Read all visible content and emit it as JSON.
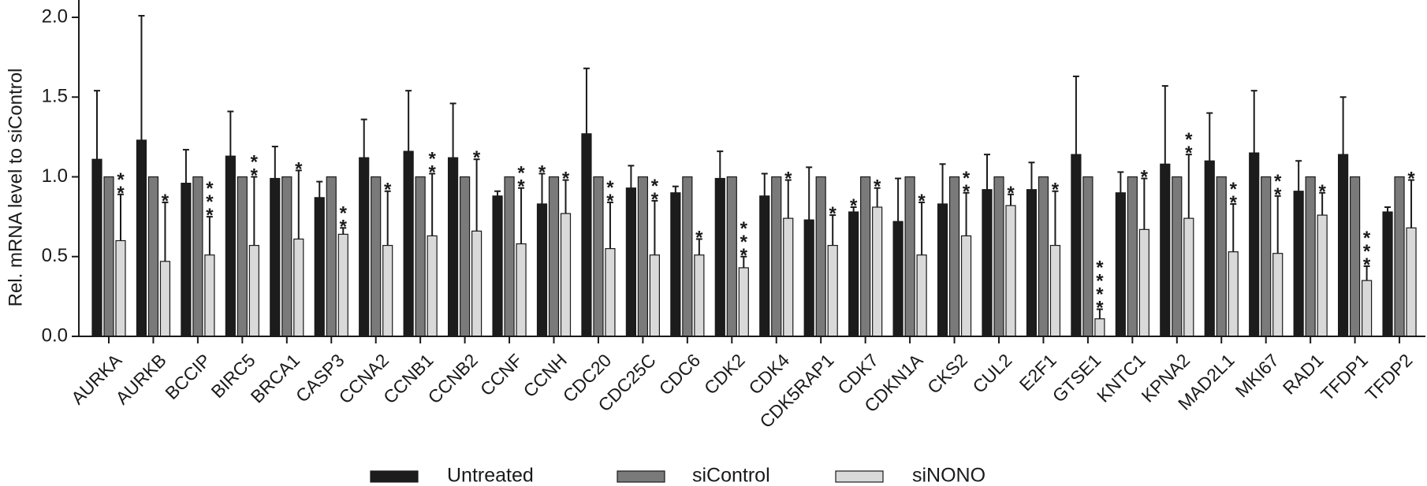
{
  "chart_data": {
    "type": "bar",
    "title": "",
    "xlabel": "",
    "ylabel": "Rel. mRNA level to siControl",
    "ylim": [
      0,
      2.0
    ],
    "yticks": [
      "0.0",
      "0.5",
      "1.0",
      "1.5",
      "2.0"
    ],
    "grid": false,
    "legend_position": "bottom",
    "categories": [
      "AURKA",
      "AURKB",
      "BCCIP",
      "BIRC5",
      "BRCA1",
      "CASP3",
      "CCNA2",
      "CCNB1",
      "CCNB2",
      "CCNF",
      "CCNH",
      "CDC20",
      "CDC25C",
      "CDC6",
      "CDK2",
      "CDK4",
      "CDK5RAP1",
      "CDK7",
      "CDKN1A",
      "CKS2",
      "CUL2",
      "E2F1",
      "GTSE1",
      "KNTC1",
      "KPNA2",
      "MAD2L1",
      "MKI67",
      "RAD1",
      "TFDP1",
      "TFDP2"
    ],
    "series": [
      {
        "name": "Untreated",
        "color": "#1c1c1c",
        "values": [
          1.11,
          1.23,
          0.96,
          1.13,
          0.99,
          0.87,
          1.12,
          1.16,
          1.12,
          0.88,
          0.83,
          1.27,
          0.93,
          0.9,
          0.99,
          0.88,
          0.73,
          0.78,
          0.72,
          0.83,
          0.92,
          0.92,
          1.14,
          0.9,
          1.08,
          1.1,
          1.15,
          0.91,
          1.14,
          0.78
        ],
        "errors": [
          0.43,
          0.78,
          0.21,
          0.28,
          0.2,
          0.1,
          0.24,
          0.38,
          0.34,
          0.03,
          0.19,
          0.41,
          0.14,
          0.04,
          0.17,
          0.14,
          0.33,
          0.03,
          0.27,
          0.25,
          0.22,
          0.17,
          0.49,
          0.13,
          0.49,
          0.3,
          0.39,
          0.19,
          0.36,
          0.03
        ]
      },
      {
        "name": "siControl",
        "color": "#7a7a7a",
        "values": [
          1,
          1,
          1,
          1,
          1,
          1,
          1,
          1,
          1,
          1,
          1,
          1,
          1,
          1,
          1,
          1,
          1,
          1,
          1,
          1,
          1,
          1,
          1,
          1,
          1,
          1,
          1,
          1,
          1,
          1
        ],
        "errors": [
          0,
          0,
          0,
          0,
          0,
          0,
          0,
          0,
          0,
          0,
          0,
          0,
          0,
          0,
          0,
          0,
          0,
          0,
          0,
          0,
          0,
          0,
          0,
          0,
          0,
          0,
          0,
          0,
          0,
          0
        ]
      },
      {
        "name": "siNONO",
        "color": "#d9d9d9",
        "values": [
          0.6,
          0.47,
          0.51,
          0.57,
          0.61,
          0.64,
          0.57,
          0.63,
          0.66,
          0.58,
          0.77,
          0.55,
          0.51,
          0.51,
          0.43,
          0.74,
          0.57,
          0.81,
          0.51,
          0.63,
          0.82,
          0.57,
          0.11,
          0.67,
          0.74,
          0.53,
          0.52,
          0.76,
          0.35,
          0.68
        ],
        "errors": [
          0.29,
          0.37,
          0.24,
          0.43,
          0.43,
          0.04,
          0.34,
          0.39,
          0.45,
          0.35,
          0.21,
          0.29,
          0.34,
          0.1,
          0.07,
          0.24,
          0.19,
          0.12,
          0.33,
          0.27,
          0.07,
          0.34,
          0.06,
          0.32,
          0.4,
          0.3,
          0.36,
          0.14,
          0.09,
          0.3
        ]
      }
    ],
    "significance": [
      {
        "category": "AURKA",
        "series": "siNONO",
        "label": "**"
      },
      {
        "category": "AURKB",
        "series": "siNONO",
        "label": "*"
      },
      {
        "category": "BCCIP",
        "series": "siNONO",
        "label": "***"
      },
      {
        "category": "BIRC5",
        "series": "siNONO",
        "label": "**"
      },
      {
        "category": "BRCA1",
        "series": "siNONO",
        "label": "*"
      },
      {
        "category": "CASP3",
        "series": "siNONO",
        "label": "**"
      },
      {
        "category": "CCNA2",
        "series": "siNONO",
        "label": "*"
      },
      {
        "category": "CCNB1",
        "series": "siNONO",
        "label": "**"
      },
      {
        "category": "CCNB2",
        "series": "siNONO",
        "label": "*"
      },
      {
        "category": "CCNF",
        "series": "siNONO",
        "label": "**"
      },
      {
        "category": "CCNH",
        "series": "Untreated",
        "label": "*"
      },
      {
        "category": "CCNH",
        "series": "siNONO",
        "label": "*"
      },
      {
        "category": "CDC20",
        "series": "siNONO",
        "label": "**"
      },
      {
        "category": "CDC25C",
        "series": "siNONO",
        "label": "**"
      },
      {
        "category": "CDC6",
        "series": "siNONO",
        "label": "*"
      },
      {
        "category": "CDK2",
        "series": "siNONO",
        "label": "***"
      },
      {
        "category": "CDK4",
        "series": "siNONO",
        "label": "*"
      },
      {
        "category": "CDK5RAP1",
        "series": "siNONO",
        "label": "*"
      },
      {
        "category": "CDK7",
        "series": "Untreated",
        "label": "*"
      },
      {
        "category": "CDK7",
        "series": "siNONO",
        "label": "*"
      },
      {
        "category": "CDKN1A",
        "series": "siNONO",
        "label": "*"
      },
      {
        "category": "CKS2",
        "series": "siNONO",
        "label": "**"
      },
      {
        "category": "CUL2",
        "series": "siNONO",
        "label": "*"
      },
      {
        "category": "E2F1",
        "series": "siNONO",
        "label": "*"
      },
      {
        "category": "GTSE1",
        "series": "siNONO",
        "label": "****"
      },
      {
        "category": "KNTC1",
        "series": "siNONO",
        "label": "*"
      },
      {
        "category": "KPNA2",
        "series": "siNONO",
        "label": "**"
      },
      {
        "category": "MAD2L1",
        "series": "siNONO",
        "label": "**"
      },
      {
        "category": "MKI67",
        "series": "siNONO",
        "label": "**"
      },
      {
        "category": "RAD1",
        "series": "siNONO",
        "label": "*"
      },
      {
        "category": "TFDP1",
        "series": "siNONO",
        "label": "***"
      },
      {
        "category": "TFDP2",
        "series": "siNONO",
        "label": "*"
      }
    ]
  }
}
